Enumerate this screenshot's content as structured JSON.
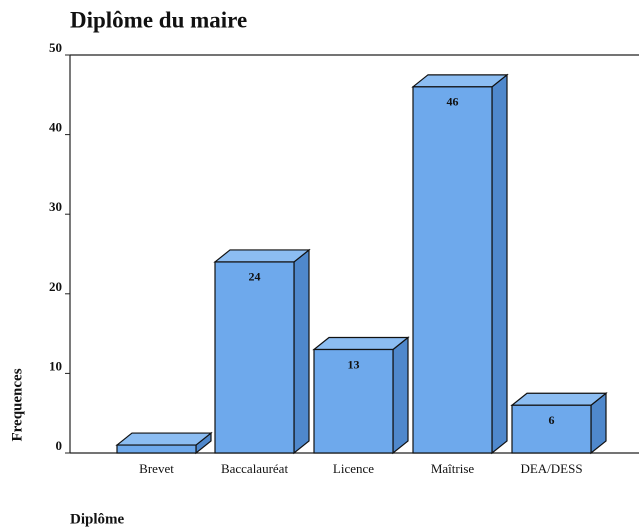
{
  "chart_data": {
    "type": "bar3d",
    "title": "Diplôme du maire",
    "x_label": "Diplôme",
    "y_label": "Frequences",
    "categories": [
      "Brevet",
      "Baccalauréat",
      "Licence",
      "Maîtrise",
      "DEA/DESS"
    ],
    "values": [
      1,
      24,
      13,
      46,
      6
    ],
    "value_labels": [
      null,
      "24",
      "13",
      "46",
      "6"
    ],
    "color": "#6ea9ec",
    "ylim": [
      0,
      50
    ],
    "yticks": [
      0,
      10,
      20,
      30,
      40,
      50
    ]
  }
}
